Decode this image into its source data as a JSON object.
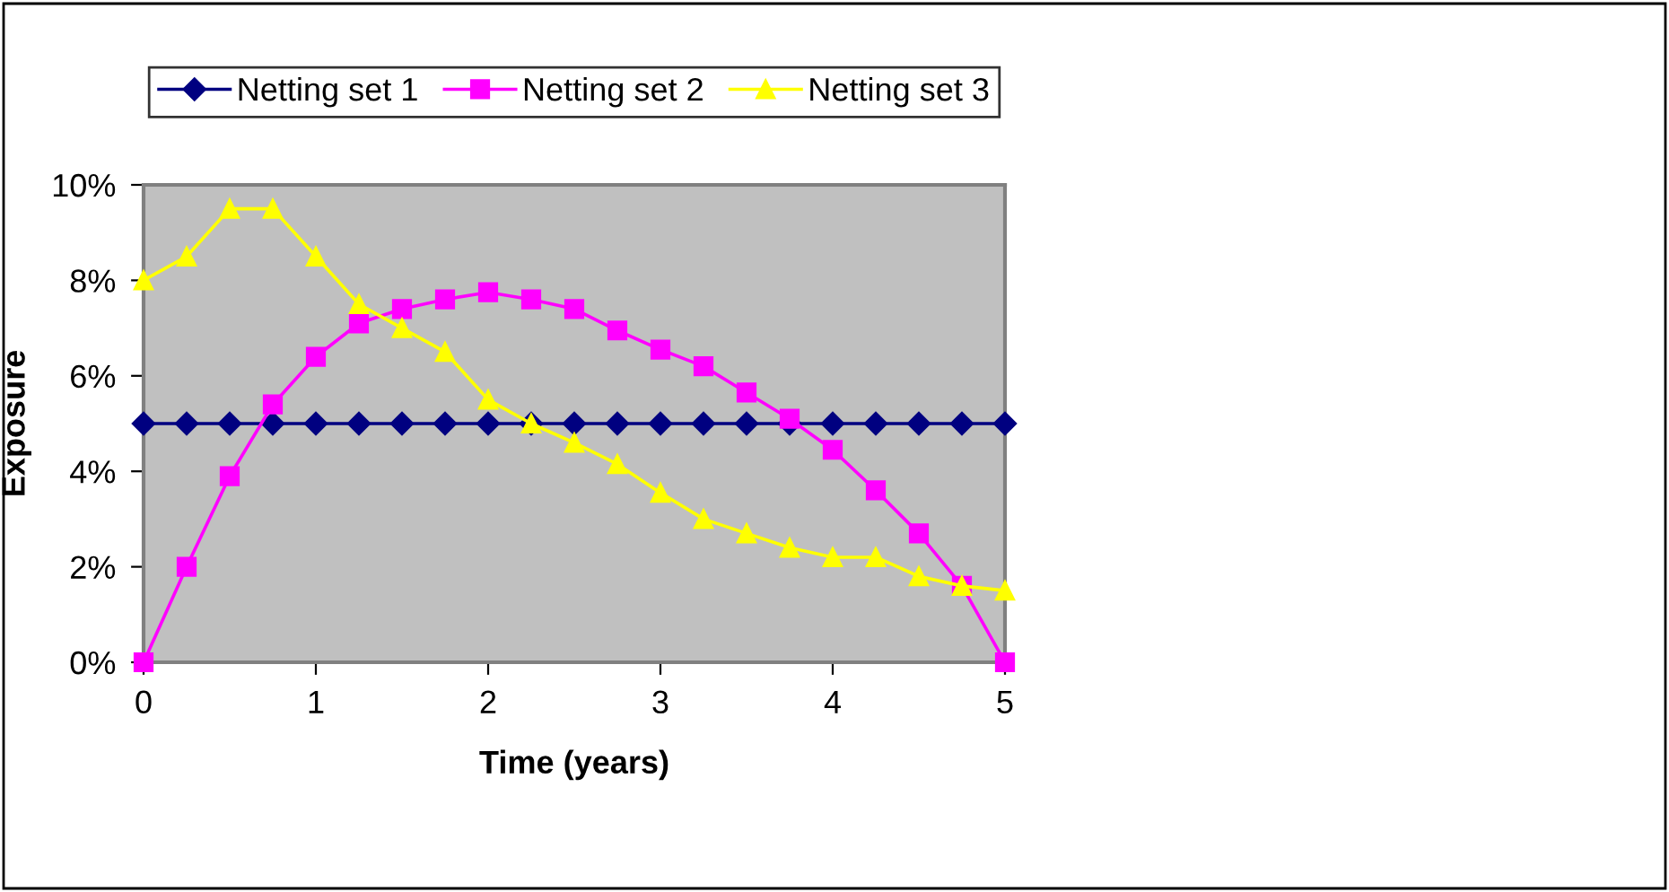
{
  "chart_data": {
    "type": "line",
    "xlabel": "Time (years)",
    "ylabel": "Exposure",
    "x": [
      0,
      0.25,
      0.5,
      0.75,
      1,
      1.25,
      1.5,
      1.75,
      2,
      2.25,
      2.5,
      2.75,
      3,
      3.25,
      3.5,
      3.75,
      4,
      4.25,
      4.5,
      4.75,
      5
    ],
    "series": [
      {
        "name": "Netting set 1",
        "color": "#000080",
        "marker": "diamond",
        "values": [
          5,
          5,
          5,
          5,
          5,
          5,
          5,
          5,
          5,
          5,
          5,
          5,
          5,
          5,
          5,
          5,
          5,
          5,
          5,
          5,
          5
        ]
      },
      {
        "name": "Netting set 2",
        "color": "#ff00ff",
        "marker": "square",
        "values": [
          0,
          2.0,
          3.9,
          5.4,
          6.4,
          7.1,
          7.4,
          7.6,
          7.75,
          7.6,
          7.4,
          6.95,
          6.55,
          6.2,
          5.65,
          5.1,
          4.45,
          3.6,
          2.7,
          1.6,
          0
        ]
      },
      {
        "name": "Netting set 3",
        "color": "#ffff00",
        "marker": "triangle",
        "values": [
          8,
          8.5,
          9.5,
          9.5,
          8.5,
          7.5,
          7.0,
          6.5,
          5.5,
          5.0,
          4.6,
          4.15,
          3.55,
          3.0,
          2.7,
          2.4,
          2.2,
          2.2,
          1.8,
          1.6,
          1.5
        ]
      }
    ],
    "xlim": [
      0,
      5
    ],
    "xticks": [
      0,
      1,
      2,
      3,
      4,
      5
    ],
    "ylim": [
      0,
      10
    ],
    "yticks": [
      {
        "value": 0,
        "label": "0%"
      },
      {
        "value": 2,
        "label": "2%"
      },
      {
        "value": 4,
        "label": "4%"
      },
      {
        "value": 6,
        "label": "6%"
      },
      {
        "value": 8,
        "label": "8%"
      },
      {
        "value": 10,
        "label": "10%"
      }
    ],
    "grid": false,
    "legend": "top",
    "line_style": "solid"
  }
}
